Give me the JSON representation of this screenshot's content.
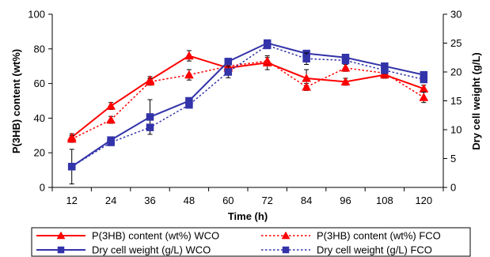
{
  "chart_data": {
    "type": "line",
    "xlabel": "Time (h)",
    "ylabel": "P(3HB) content (wt%)",
    "y2label": "Dry cell weight (g/L)",
    "categories": [
      "12",
      "24",
      "36",
      "48",
      "60",
      "72",
      "84",
      "96",
      "108",
      "120"
    ],
    "ylim": [
      0,
      100
    ],
    "yticks": [
      "0",
      "20",
      "40",
      "60",
      "80",
      "100"
    ],
    "y2lim": [
      0,
      30
    ],
    "y2ticks": [
      "0",
      "5",
      "10",
      "15",
      "20",
      "25",
      "30"
    ],
    "legend_position": "bottom",
    "series": [
      {
        "name": "P(3HB) content (wt%) WCO",
        "axis": "left",
        "color": "#ff0000",
        "line_style": "solid",
        "marker": "triangle",
        "values": [
          29,
          47,
          62,
          76,
          69,
          72,
          63,
          61,
          65,
          57
        ],
        "errors": [
          2,
          2,
          2,
          3,
          2,
          4,
          5,
          2,
          2,
          2
        ]
      },
      {
        "name": "P(3HB) content (wt%) FCO",
        "axis": "left",
        "color": "#ff0000",
        "line_style": "dotted",
        "marker": "triangle",
        "values": [
          28,
          39,
          61,
          65,
          70,
          73,
          58,
          69,
          66,
          52
        ],
        "errors": [
          2,
          2,
          2,
          3,
          2,
          2,
          2,
          2,
          2,
          3
        ]
      },
      {
        "name": "Dry cell weight (g/L) WCO",
        "axis": "right",
        "color": "#3333aa",
        "line_style": "solid",
        "marker": "square",
        "values": [
          3.6,
          8.2,
          12.2,
          15.0,
          21.8,
          25.0,
          23.2,
          22.5,
          21.0,
          19.5
        ],
        "errors": [
          3.0,
          0.4,
          3.0,
          0.5,
          0.5,
          0.3,
          0.5,
          0.4,
          0.5,
          0.4
        ]
      },
      {
        "name": "Dry cell weight (g/L) FCO",
        "axis": "right",
        "color": "#3333aa",
        "line_style": "dotted",
        "marker": "square",
        "values": [
          3.6,
          7.8,
          10.4,
          14.3,
          20.0,
          24.6,
          22.3,
          22.0,
          20.3,
          18.7
        ],
        "errors": [
          0.3,
          0.3,
          0.4,
          0.5,
          1.0,
          0.4,
          1.0,
          0.4,
          0.6,
          0.4
        ]
      }
    ]
  }
}
